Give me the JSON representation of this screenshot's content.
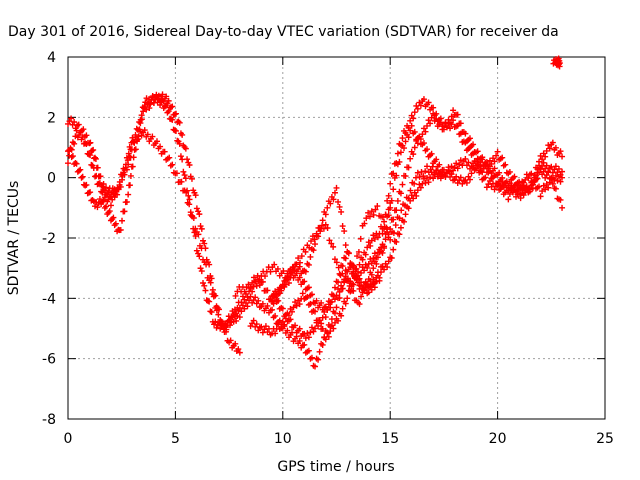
{
  "chart_data": {
    "type": "scatter",
    "title": "Day 301 of 2016, Sidereal Day-to-day VTEC variation (SDTVAR) for receiver da",
    "xlabel": "GPS time / hours",
    "ylabel": "SDTVAR / TECUs",
    "xlim": [
      0,
      25
    ],
    "ylim": [
      -8,
      4
    ],
    "xticks": [
      "0",
      "5",
      "10",
      "15",
      "20",
      "25"
    ],
    "yticks": [
      "4",
      "2",
      "0",
      "-2",
      "-4",
      "-6",
      "-8"
    ],
    "xtick_values": [
      0,
      5,
      10,
      15,
      20,
      25
    ],
    "ytick_values": [
      4,
      2,
      0,
      -2,
      -4,
      -6,
      -8
    ],
    "grid": true,
    "marker": "+",
    "color": "#ff0000",
    "series": [
      {
        "points": [
          [
            0,
            1.9
          ],
          [
            0.5,
            1.7
          ],
          [
            1,
            1.2
          ],
          [
            1.3,
            0.5
          ],
          [
            1.6,
            -0.3
          ],
          [
            2,
            -0.5
          ],
          [
            2.3,
            -0.4
          ],
          [
            2.7,
            0.5
          ],
          [
            3,
            1.2
          ],
          [
            3.5,
            1.5
          ],
          [
            4,
            1.2
          ],
          [
            4.5,
            0.8
          ],
          [
            5,
            0.2
          ],
          [
            5.5,
            -0.6
          ],
          [
            6,
            -1.8
          ],
          [
            6.5,
            -3.2
          ],
          [
            7,
            -4.6
          ],
          [
            7.5,
            -5.4
          ],
          [
            8,
            -5.8
          ]
        ]
      },
      {
        "points": [
          [
            0,
            1.0
          ],
          [
            0.4,
            0.4
          ],
          [
            0.8,
            -0.2
          ],
          [
            1.2,
            -0.9
          ],
          [
            1.6,
            -0.8
          ],
          [
            2,
            -1.3
          ],
          [
            2.4,
            -1.8
          ],
          [
            2.8,
            -0.5
          ],
          [
            3.1,
            0.8
          ],
          [
            3.5,
            2.2
          ],
          [
            4,
            2.6
          ],
          [
            4.4,
            2.7
          ],
          [
            4.8,
            2.4
          ],
          [
            5.2,
            1.7
          ],
          [
            5.6,
            0.5
          ],
          [
            6,
            -0.9
          ],
          [
            6.4,
            -2.4
          ],
          [
            6.8,
            -3.8
          ],
          [
            7.2,
            -5.0
          ],
          [
            7.6,
            -4.6
          ],
          [
            8,
            -4.2
          ],
          [
            8.5,
            -3.7
          ],
          [
            9,
            -3.4
          ],
          [
            9.5,
            -4.2
          ],
          [
            10,
            -3.6
          ],
          [
            10.5,
            -3.2
          ],
          [
            11,
            -3.5
          ],
          [
            11.5,
            -4.1
          ],
          [
            12,
            -4.4
          ],
          [
            12.5,
            -3.9
          ],
          [
            13,
            -3.3
          ],
          [
            13.5,
            -4.2
          ],
          [
            14,
            -3.3
          ],
          [
            14.5,
            -2.6
          ],
          [
            15,
            -0.2
          ],
          [
            15.5,
            1.2
          ],
          [
            16,
            2.0
          ],
          [
            16.5,
            2.6
          ],
          [
            17,
            2.2
          ],
          [
            17.5,
            1.7
          ],
          [
            18,
            1.8
          ],
          [
            18.5,
            1.1
          ],
          [
            19,
            0.6
          ],
          [
            19.5,
            0.4
          ],
          [
            20,
            0.1
          ],
          [
            20.5,
            -0.3
          ],
          [
            21,
            -0.6
          ],
          [
            21.5,
            -0.3
          ],
          [
            22,
            0.6
          ],
          [
            22.5,
            1.1
          ],
          [
            23,
            0.7
          ]
        ]
      },
      {
        "points": [
          [
            0,
            0.6
          ],
          [
            0.4,
            1.5
          ],
          [
            0.8,
            1.2
          ],
          [
            1.2,
            0.2
          ],
          [
            1.6,
            -0.5
          ],
          [
            2,
            -0.8
          ],
          [
            2.4,
            -0.3
          ],
          [
            2.8,
            0.5
          ],
          [
            3.2,
            1.5
          ],
          [
            3.6,
            2.5
          ],
          [
            4,
            2.6
          ],
          [
            4.4,
            2.5
          ],
          [
            4.8,
            2.0
          ],
          [
            5.2,
            1.0
          ],
          [
            5.6,
            -0.6
          ],
          [
            6,
            -2.3
          ],
          [
            6.4,
            -3.8
          ],
          [
            6.8,
            -4.8
          ],
          [
            7.2,
            -5.0
          ],
          [
            7.6,
            -4.8
          ],
          [
            8,
            -4.5
          ],
          [
            8.5,
            -4.0
          ],
          [
            9,
            -4.2
          ],
          [
            9.5,
            -4.5
          ],
          [
            10,
            -5.0
          ],
          [
            10.5,
            -5.3
          ],
          [
            11,
            -5.6
          ],
          [
            11.5,
            -6.2
          ],
          [
            12,
            -5.2
          ],
          [
            12.5,
            -4.3
          ],
          [
            13,
            -3.0
          ],
          [
            13.5,
            -3.3
          ],
          [
            14,
            -2.8
          ],
          [
            14.5,
            -2.5
          ],
          [
            15,
            -1.7
          ],
          [
            15.5,
            -0.4
          ],
          [
            16,
            0.8
          ],
          [
            16.5,
            1.5
          ],
          [
            17,
            2.0
          ],
          [
            17.5,
            1.6
          ],
          [
            18,
            2.2
          ],
          [
            18.5,
            1.4
          ],
          [
            19,
            0.9
          ],
          [
            19.5,
            0.3
          ],
          [
            20,
            -0.2
          ],
          [
            20.5,
            -0.6
          ],
          [
            21,
            -0.2
          ],
          [
            21.5,
            -0.4
          ],
          [
            22,
            0.2
          ],
          [
            22.5,
            0.0
          ],
          [
            23,
            -1.0
          ]
        ]
      },
      {
        "points": [
          [
            9.5,
            -3.8
          ],
          [
            10,
            -4.4
          ],
          [
            10.5,
            -4.9
          ],
          [
            11,
            -5.3
          ],
          [
            11.5,
            -5.0
          ],
          [
            12,
            -4.5
          ],
          [
            12.5,
            -3.5
          ],
          [
            13,
            -2.4
          ],
          [
            13.5,
            -3.5
          ],
          [
            14,
            -3.6
          ],
          [
            14.5,
            -3.2
          ],
          [
            15,
            -2.7
          ],
          [
            15.5,
            -1.6
          ],
          [
            16,
            -0.7
          ],
          [
            16.5,
            -0.2
          ],
          [
            17,
            0.1
          ],
          [
            17.5,
            0.1
          ],
          [
            18,
            0.4
          ],
          [
            18.5,
            0.5
          ],
          [
            19,
            0.3
          ],
          [
            19.5,
            0.3
          ],
          [
            20,
            0.8
          ],
          [
            20.5,
            0.2
          ],
          [
            21,
            -0.3
          ],
          [
            21.5,
            0.1
          ],
          [
            22,
            -0.5
          ],
          [
            22.5,
            -0.1
          ],
          [
            23,
            0.0
          ]
        ]
      },
      {
        "points": [
          [
            9.5,
            -4.0
          ],
          [
            10,
            -3.6
          ],
          [
            10.5,
            -2.9
          ],
          [
            11,
            -3.2
          ],
          [
            11.5,
            -2.2
          ],
          [
            12,
            -1.1
          ],
          [
            12.5,
            -0.4
          ],
          [
            13,
            -2.4
          ],
          [
            13.5,
            -3.6
          ],
          [
            14,
            -3.8
          ],
          [
            14.5,
            -3.3
          ],
          [
            15,
            -0.9
          ],
          [
            15.5,
            0.9
          ],
          [
            16,
            1.6
          ],
          [
            16.5,
            1.1
          ],
          [
            17,
            0.6
          ],
          [
            17.5,
            0.2
          ],
          [
            18,
            0.0
          ],
          [
            18.5,
            -0.2
          ],
          [
            19,
            0.4
          ],
          [
            19.5,
            -0.2
          ],
          [
            20,
            -0.3
          ],
          [
            20.5,
            -0.2
          ],
          [
            21,
            -0.5
          ],
          [
            21.5,
            -0.4
          ],
          [
            22,
            0.4
          ],
          [
            22.5,
            0.3
          ],
          [
            23,
            0.2
          ]
        ]
      },
      {
        "points": [
          [
            7.8,
            -3.8
          ],
          [
            8.4,
            -3.6
          ],
          [
            9,
            -3.2
          ],
          [
            9.6,
            -3.0
          ],
          [
            10.2,
            -3.3
          ],
          [
            10.8,
            -2.7
          ],
          [
            11.4,
            -2.0
          ],
          [
            12,
            -1.5
          ],
          [
            12.6,
            -3.1
          ],
          [
            13.2,
            -3.6
          ],
          [
            13.8,
            -1.4
          ],
          [
            14.4,
            -1.0
          ],
          [
            15,
            -2.0
          ],
          [
            15.6,
            -1.0
          ],
          [
            16.2,
            0.0
          ],
          [
            16.8,
            0.3
          ],
          [
            17.4,
            0.1
          ]
        ]
      },
      {
        "points": [
          [
            8.5,
            -4.8
          ],
          [
            9,
            -5.0
          ],
          [
            9.5,
            -5.1
          ],
          [
            10,
            -4.9
          ],
          [
            10.5,
            -4.3
          ],
          [
            11,
            -3.9
          ],
          [
            11.5,
            -4.5
          ],
          [
            12,
            -5.3
          ],
          [
            12.5,
            -4.8
          ],
          [
            13,
            -4.0
          ],
          [
            13.5,
            -3.0
          ],
          [
            14,
            -2.2
          ],
          [
            14.5,
            -1.8
          ],
          [
            15,
            -1.0
          ]
        ]
      },
      {
        "points": [
          [
            22.6,
            3.9
          ],
          [
            22.8,
            3.85
          ],
          [
            22.9,
            3.8
          ]
        ]
      }
    ]
  }
}
